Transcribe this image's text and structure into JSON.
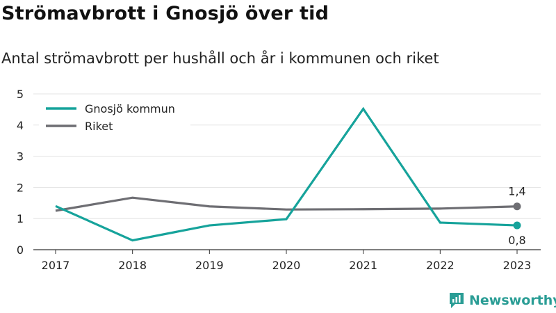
{
  "title": "Strömavbrott i Gnosjö över tid",
  "subtitle": "Antal strömavbrott per hushåll och år i kommunen och riket",
  "brand": {
    "name": "Newsworthy",
    "icon": "newsworthy-logo-icon",
    "color": "#2a9d95"
  },
  "chart_data": {
    "type": "line",
    "title": "",
    "xlabel": "",
    "ylabel": "",
    "x": [
      "2017",
      "2018",
      "2019",
      "2020",
      "2021",
      "2022",
      "2023"
    ],
    "ylim": [
      0,
      5
    ],
    "yticks": [
      0,
      1,
      2,
      3,
      4,
      5
    ],
    "grid": true,
    "legend_position": "top-left",
    "series": [
      {
        "name": "Gnosjö kommun",
        "color": "#16a39b",
        "values": [
          1.4,
          0.3,
          0.78,
          0.98,
          4.52,
          0.87,
          0.78
        ],
        "end_label": "0,8",
        "end_label_position": "below"
      },
      {
        "name": "Riket",
        "color": "#6e6e73",
        "values": [
          1.25,
          1.67,
          1.39,
          1.29,
          1.3,
          1.32,
          1.39
        ],
        "end_label": "1,4",
        "end_label_position": "above"
      }
    ]
  }
}
